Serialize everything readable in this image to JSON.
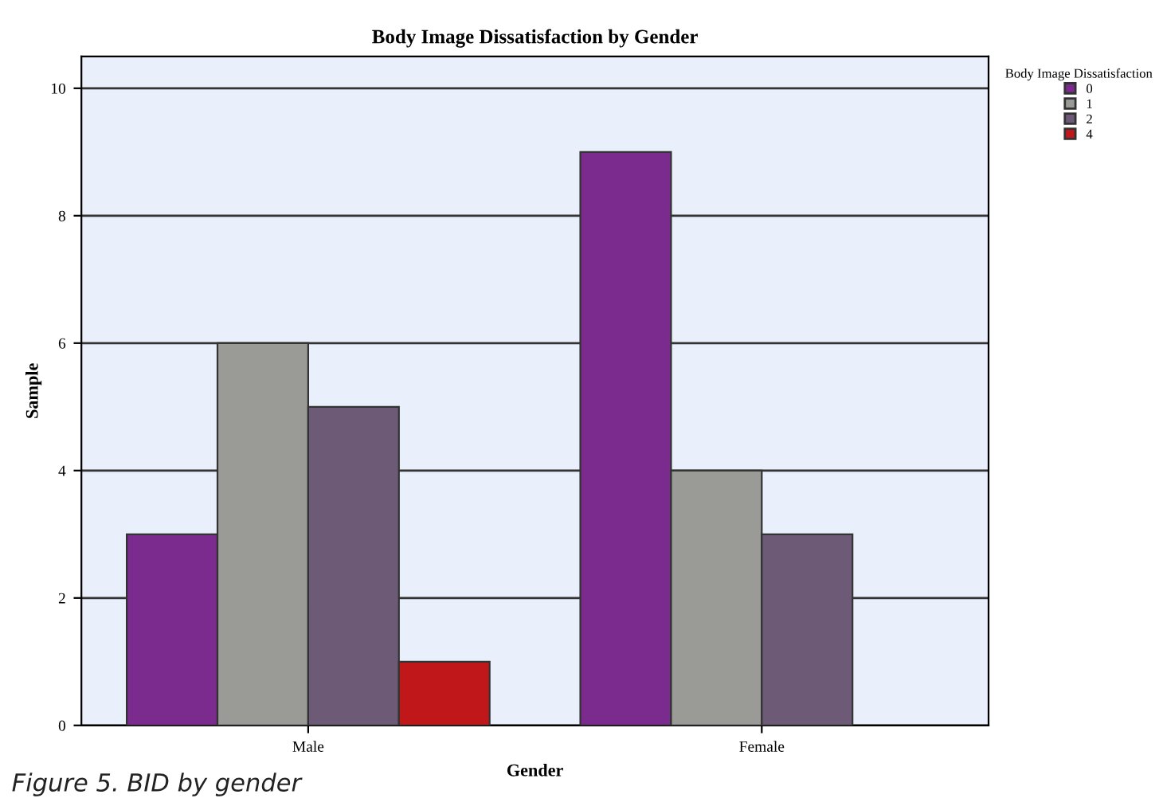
{
  "chart_data": {
    "type": "bar",
    "title": "Body Image Dissatisfaction by Gender",
    "xlabel": "Gender",
    "ylabel": "Sample",
    "legend_title": "Body Image Dissatisfaction",
    "categories": [
      "Male",
      "Female"
    ],
    "series": [
      {
        "name": "0",
        "color": "#7b2a8e",
        "values": [
          3,
          9
        ]
      },
      {
        "name": "1",
        "color": "#9a9a96",
        "values": [
          6,
          4
        ]
      },
      {
        "name": "2",
        "color": "#6c5a76",
        "values": [
          5,
          3
        ]
      },
      {
        "name": "4",
        "color": "#c0181a",
        "values": [
          1,
          null
        ]
      }
    ],
    "ylim": [
      0,
      10.5
    ],
    "yticks": [
      0,
      2,
      4,
      6,
      8,
      10
    ],
    "grid": "y",
    "legend": "top right",
    "annotations": [
      "Figure 5. BID by gender"
    ]
  }
}
